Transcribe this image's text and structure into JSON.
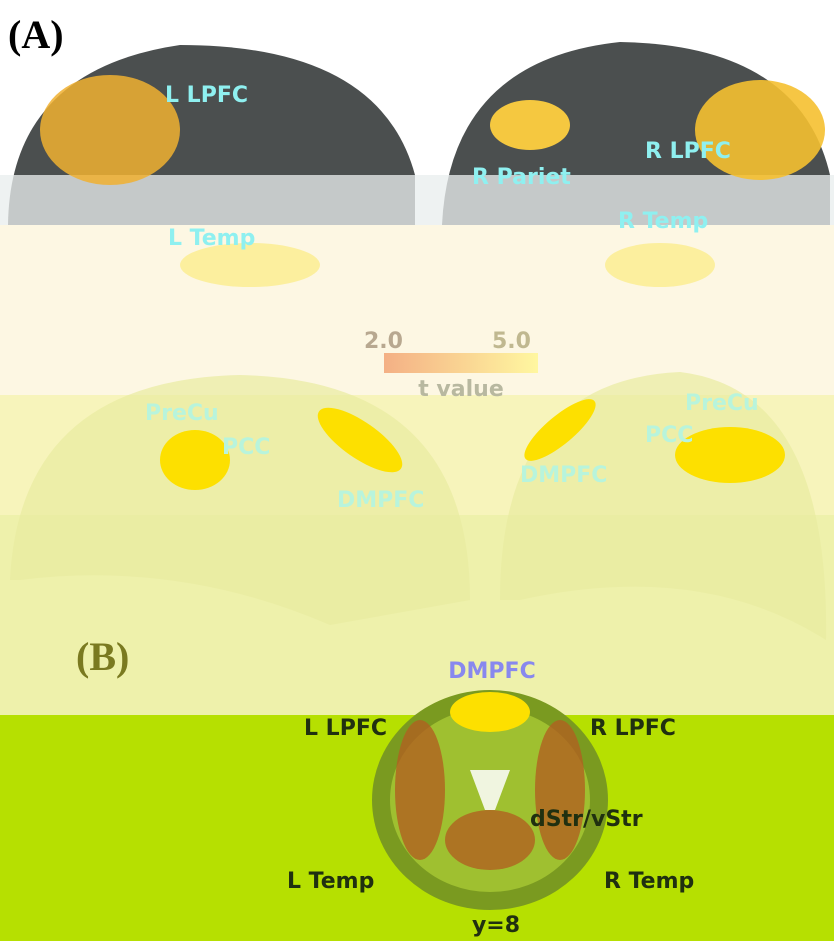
{
  "panel_a": {
    "label": "(A)",
    "lateral_labels": [
      "L LPFC",
      "R Pariet",
      "R LPFC",
      "L Temp",
      "R Temp"
    ],
    "colorbar": {
      "min": "2.0",
      "max": "5.0",
      "title": "t value"
    },
    "medial_labels": [
      "PreCu",
      "PCC",
      "DMPFC",
      "DMPFC",
      "PCC",
      "PreCu"
    ]
  },
  "panel_b": {
    "label": "(B)",
    "labels": [
      "DMPFC",
      "L LPFC",
      "R LPFC",
      "dStr/vStr",
      "L Temp",
      "R Temp"
    ],
    "slice": "y=8"
  }
}
